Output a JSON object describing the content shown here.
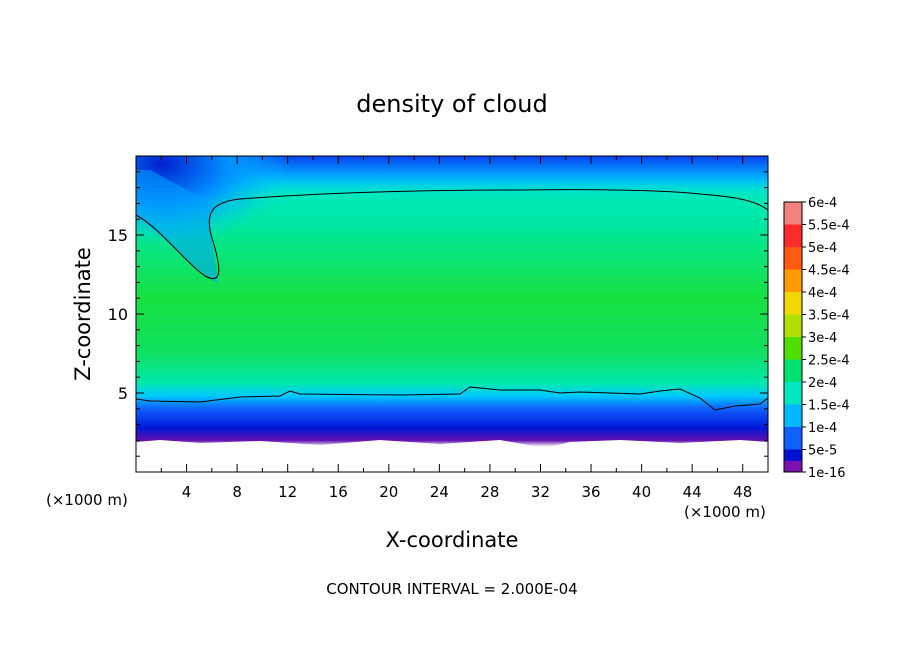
{
  "chart_data": {
    "type": "heatmap",
    "title": "density of cloud",
    "xlabel": "X-coordinate",
    "ylabel": "Z-coordinate",
    "x_unit": "(×1000 m)",
    "xlim": [
      0,
      50
    ],
    "ylim": [
      0,
      20
    ],
    "x_ticks": [
      "4",
      "8",
      "12",
      "16",
      "20",
      "24",
      "28",
      "32",
      "36",
      "40",
      "44",
      "48"
    ],
    "x_tick_values": [
      4,
      8,
      12,
      16,
      20,
      24,
      28,
      32,
      36,
      40,
      44,
      48
    ],
    "y_ticks": [
      "5",
      "10",
      "15"
    ],
    "y_tick_values": [
      5,
      10,
      15
    ],
    "footer": "CONTOUR INTERVAL = 2.000E-04",
    "colorbar": {
      "labels": [
        "6e-4",
        "5.5e-4",
        "5e-4",
        "4.5e-4",
        "4e-4",
        "3.5e-4",
        "3e-4",
        "2.5e-4",
        "2e-4",
        "1.5e-4",
        "1e-4",
        "5e-5",
        "1e-16"
      ],
      "colors": [
        "#f58080",
        "#ff2a2a",
        "#ff5a10",
        "#ff9a00",
        "#f0d800",
        "#b4e000",
        "#50e000",
        "#00e070",
        "#00e8c0",
        "#00b8ff",
        "#1060ff",
        "#0010d0",
        "#7a10b0"
      ]
    },
    "contour_levels": [
      0.0002
    ],
    "field_description_levels": {
      "upper_left_dark_region_max": 0.0001,
      "interior_typical": 0.00025,
      "upper_band_typical": 0.0002,
      "lower_boundary_band": 1e-16
    }
  }
}
